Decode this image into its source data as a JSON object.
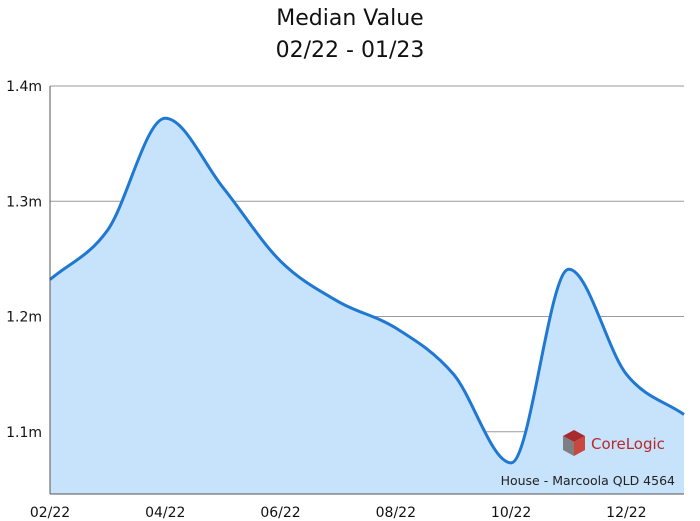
{
  "chart_data": {
    "type": "area",
    "title": "Median Value",
    "subtitle": "02/22 - 01/23",
    "xlabel": "",
    "ylabel": "",
    "x": [
      "02/22",
      "03/22",
      "04/22",
      "05/22",
      "06/22",
      "07/22",
      "08/22",
      "09/22",
      "10/22",
      "11/22",
      "12/22",
      "01/23"
    ],
    "x_tick_labels": [
      "02/22",
      "04/22",
      "06/22",
      "08/22",
      "10/22",
      "12/22"
    ],
    "y_tick_labels": [
      "1.1m",
      "1.2m",
      "1.3m",
      "1.4m"
    ],
    "y_ticks": [
      1.1,
      1.2,
      1.3,
      1.4
    ],
    "ylim": [
      1.046,
      1.4
    ],
    "series": [
      {
        "values": [
          1.232,
          1.275,
          1.372,
          1.312,
          1.248,
          1.213,
          1.19,
          1.15,
          1.073,
          1.241,
          1.15,
          1.115
        ]
      }
    ],
    "grid": true,
    "colors": {
      "line": "#1f78d1",
      "fill": "#c7e2fb",
      "grid": "#9a9a9a"
    },
    "annotation": "House - Marcoola QLD 4564",
    "logo_text": "CoreLogic"
  }
}
